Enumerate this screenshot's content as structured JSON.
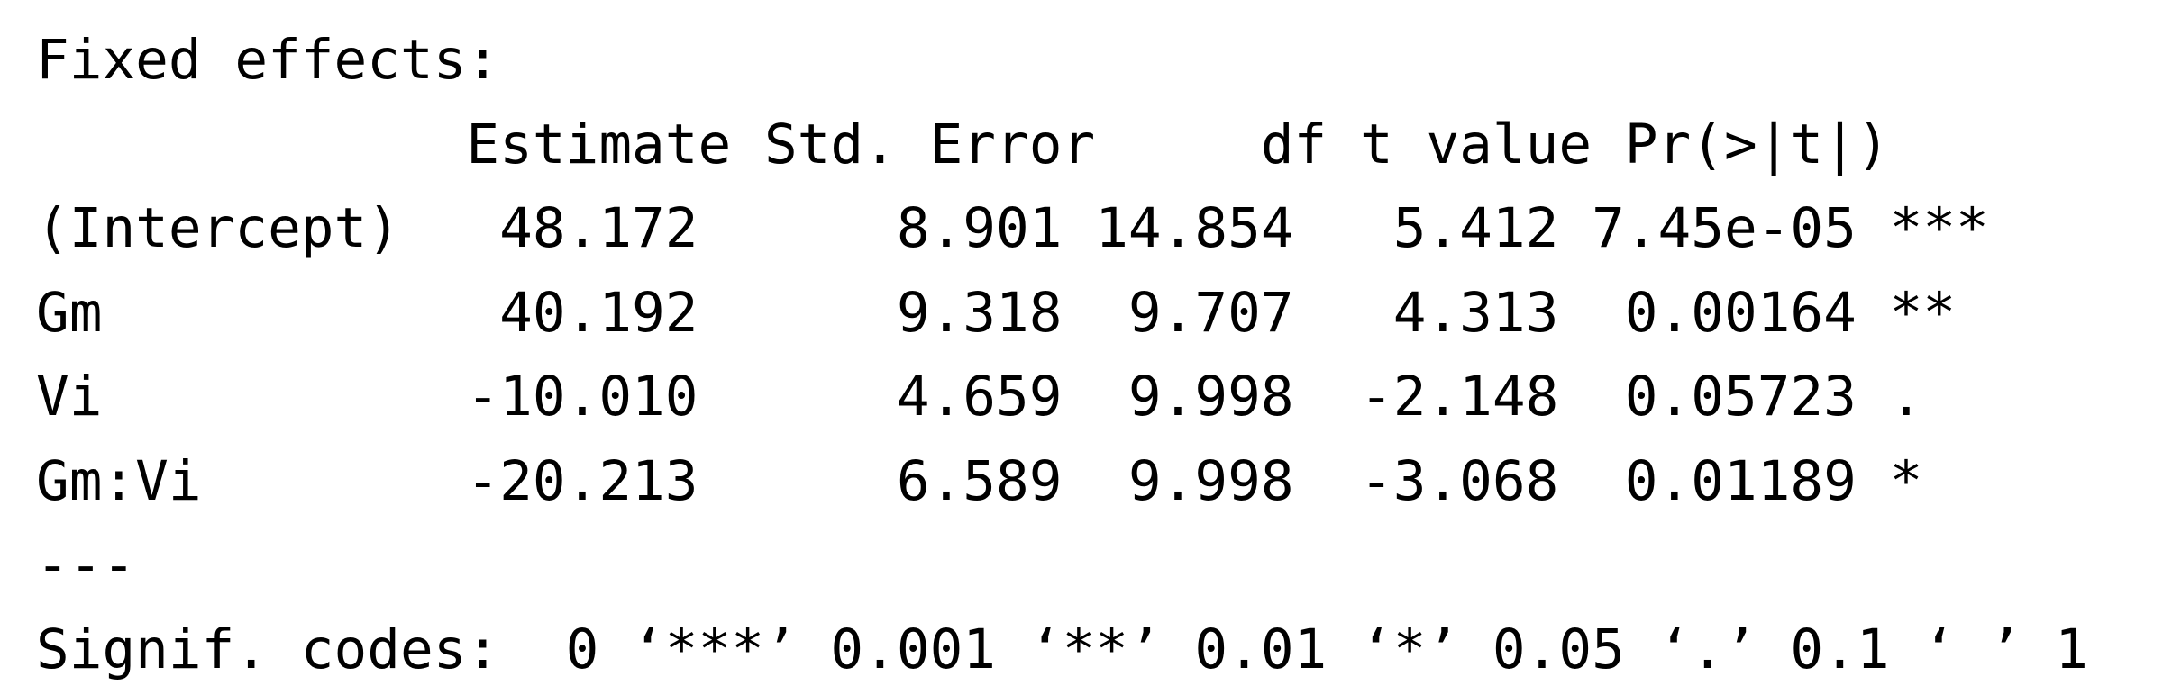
{
  "output": {
    "heading": "Fixed effects:",
    "column_header": "             Estimate Std. Error     df t value Pr(>|t|)    ",
    "rows": [
      "(Intercept)   48.172      8.901 14.854   5.412 7.45e-05 ***",
      "Gm            40.192      9.318  9.707   4.313  0.00164 ** ",
      "Vi           -10.010      4.659  9.998  -2.148  0.05723 .  ",
      "Gm:Vi        -20.213      6.589  9.998  -3.068  0.01189 *  "
    ],
    "separator": "---",
    "signif_codes": "Signif. codes:  0 ‘***’ 0.001 ‘**’ 0.01 ‘*’ 0.05 ‘.’ 0.1 ‘ ’ 1"
  }
}
